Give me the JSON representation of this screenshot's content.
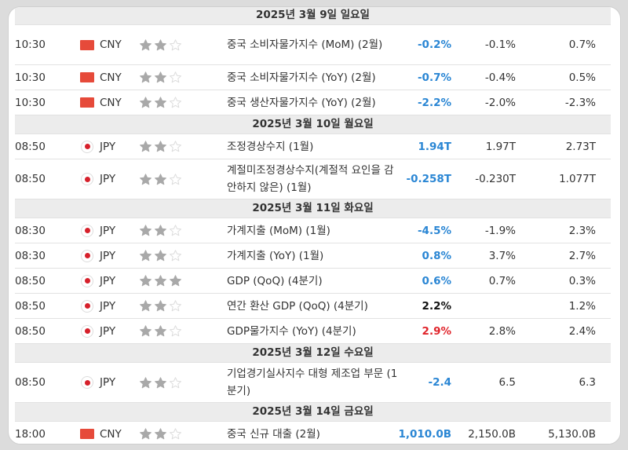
{
  "colors": {
    "actual_up": "#2a86d4",
    "actual_down": "#e0242b",
    "star_on": "#a9a9a9",
    "star_off": "#dcdcdc"
  },
  "sections": [
    {
      "date": "2025년 3월 9일 일요일",
      "events": [
        {
          "time": "10:30",
          "flag": "china-flag-icon",
          "currency": "CNY",
          "importance": 2,
          "event": "중국 소비자물가지수 (MoM) (2월)",
          "actual": "-0.2%",
          "actual_color": "blue",
          "forecast": "-0.1%",
          "previous": "0.7%"
        },
        {
          "time": "10:30",
          "flag": "china-flag-icon",
          "currency": "CNY",
          "importance": 2,
          "event": "중국 소비자물가지수 (YoY) (2월)",
          "actual": "-0.7%",
          "actual_color": "blue",
          "forecast": "-0.4%",
          "previous": "0.5%"
        },
        {
          "time": "10:30",
          "flag": "china-flag-icon",
          "currency": "CNY",
          "importance": 2,
          "event": "중국 생산자물가지수 (YoY) (2월)",
          "actual": "-2.2%",
          "actual_color": "blue",
          "forecast": "-2.0%",
          "previous": "-2.3%"
        }
      ]
    },
    {
      "date": "2025년 3월 10일 월요일",
      "events": [
        {
          "time": "08:50",
          "flag": "japan-flag-icon",
          "currency": "JPY",
          "importance": 2,
          "event": "조정경상수지 (1월)",
          "actual": "1.94T",
          "actual_color": "blue",
          "forecast": "1.97T",
          "previous": "2.73T"
        },
        {
          "time": "08:50",
          "flag": "japan-flag-icon",
          "currency": "JPY",
          "importance": 2,
          "event": "계절미조정경상수지(계절적 요인을 감안하지 않은) (1월)",
          "actual": "-0.258T",
          "actual_color": "blue",
          "forecast": "-0.230T",
          "previous": "1.077T"
        }
      ]
    },
    {
      "date": "2025년 3월 11일 화요일",
      "events": [
        {
          "time": "08:30",
          "flag": "japan-flag-icon",
          "currency": "JPY",
          "importance": 2,
          "event": "가계지출 (MoM) (1월)",
          "actual": "-4.5%",
          "actual_color": "blue",
          "forecast": "-1.9%",
          "previous": "2.3%"
        },
        {
          "time": "08:30",
          "flag": "japan-flag-icon",
          "currency": "JPY",
          "importance": 2,
          "event": "가계지출 (YoY) (1월)",
          "actual": "0.8%",
          "actual_color": "blue",
          "forecast": "3.7%",
          "previous": "2.7%"
        },
        {
          "time": "08:50",
          "flag": "japan-flag-icon",
          "currency": "JPY",
          "importance": 3,
          "event": "GDP (QoQ) (4분기)",
          "actual": "0.6%",
          "actual_color": "blue",
          "forecast": "0.7%",
          "previous": "0.3%"
        },
        {
          "time": "08:50",
          "flag": "japan-flag-icon",
          "currency": "JPY",
          "importance": 2,
          "event": "연간 환산 GDP (QoQ) (4분기)",
          "actual": "2.2%",
          "actual_color": "black",
          "forecast": "",
          "previous": "1.2%"
        },
        {
          "time": "08:50",
          "flag": "japan-flag-icon",
          "currency": "JPY",
          "importance": 2,
          "event": "GDP물가지수 (YoY) (4분기)",
          "actual": "2.9%",
          "actual_color": "red",
          "forecast": "2.8%",
          "previous": "2.4%"
        }
      ]
    },
    {
      "date": "2025년 3월 12일 수요일",
      "events": [
        {
          "time": "08:50",
          "flag": "japan-flag-icon",
          "currency": "JPY",
          "importance": 2,
          "event": "기업경기실사지수 대형 제조업 부문 (1분기)",
          "actual": "-2.4",
          "actual_color": "blue",
          "forecast": "6.5",
          "previous": "6.3"
        }
      ]
    },
    {
      "date": "2025년 3월 14일 금요일",
      "events": [
        {
          "time": "18:00",
          "flag": "china-flag-icon",
          "currency": "CNY",
          "importance": 2,
          "event": "중국 신규 대출 (2월)",
          "actual": "1,010.0B",
          "actual_color": "blue",
          "forecast": "2,150.0B",
          "previous": "5,130.0B"
        }
      ]
    }
  ]
}
